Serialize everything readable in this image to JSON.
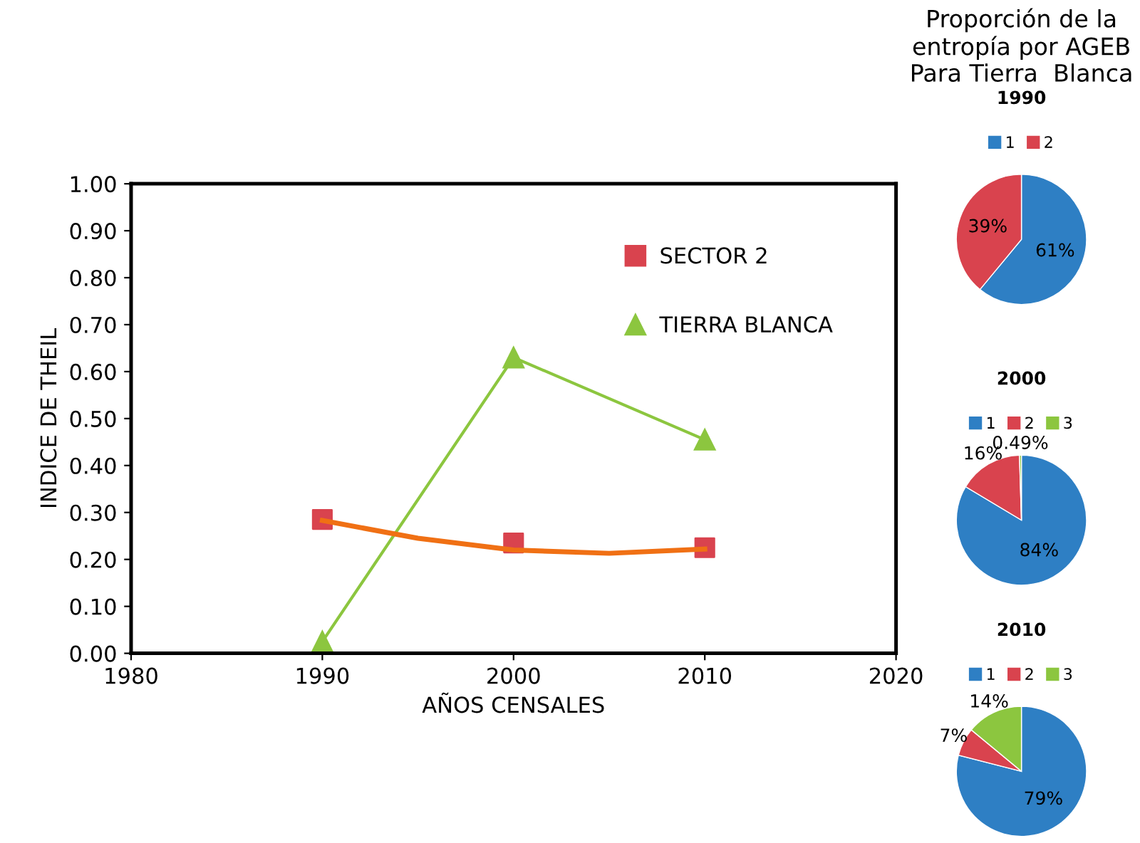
{
  "chart_data": [
    {
      "type": "line",
      "xlabel": "AÑOS CENSALES",
      "ylabel": "INDICE DE THEIL",
      "xlim": [
        1980,
        2020
      ],
      "xticks": [
        1980,
        1990,
        2000,
        2010,
        2020
      ],
      "ylim": [
        0,
        1
      ],
      "yticks": [
        {
          "value": 0,
          "label": "0.00"
        },
        {
          "value": 0.1,
          "label": "0.10"
        },
        {
          "value": 0.2,
          "label": "0.20"
        },
        {
          "value": 0.3,
          "label": "0.30"
        },
        {
          "value": 0.4,
          "label": "0.40"
        },
        {
          "value": 0.5,
          "label": "0.50"
        },
        {
          "value": 0.6,
          "label": "0.60"
        },
        {
          "value": 0.7,
          "label": "0.70"
        },
        {
          "value": 0.8,
          "label": "0.80"
        },
        {
          "value": 0.9,
          "label": "0.90"
        },
        {
          "value": 1,
          "label": "1.00"
        }
      ],
      "grid": false,
      "legend": "top right",
      "series": [
        {
          "name": "SECTOR 2",
          "type": "scatter",
          "marker": "square",
          "color": "#d9434e",
          "x": [
            1990,
            2000,
            2010
          ],
          "values": [
            0.285,
            0.235,
            0.225
          ]
        },
        {
          "name": "TIERRA BLANCA",
          "type": "line",
          "marker": "triangle",
          "color": "#8cc63f",
          "x": [
            1990,
            2000,
            2010
          ],
          "values": [
            0.025,
            0.63,
            0.455
          ]
        },
        {
          "type": "line",
          "marker": "none",
          "color": "#f07014",
          "x": [
            1990,
            1995,
            2000,
            2005,
            2010
          ],
          "values": [
            0.283,
            0.245,
            0.22,
            0.213,
            0.222
          ]
        }
      ]
    },
    {
      "type": "pie",
      "title": "1990",
      "annotations": [
        "Proporción de la\nentropía por AGEB\nPara Tierra  Blanca"
      ],
      "legend": "top",
      "categories": [
        "1",
        "2"
      ],
      "values": [
        61,
        39
      ],
      "colors": [
        "#2e7fc4",
        "#d9434e"
      ],
      "value_labels": [
        "61%",
        "39%"
      ]
    },
    {
      "type": "pie",
      "title": "2000",
      "legend": "top",
      "categories": [
        "1",
        "2",
        "3"
      ],
      "values": [
        84,
        16,
        0.49
      ],
      "colors": [
        "#2e7fc4",
        "#d9434e",
        "#8cc63f"
      ],
      "value_labels": [
        "84%",
        "16%",
        "0.49%"
      ]
    },
    {
      "type": "pie",
      "title": "2010",
      "legend": "top",
      "categories": [
        "1",
        "2",
        "3"
      ],
      "values": [
        79,
        7,
        14
      ],
      "colors": [
        "#2e7fc4",
        "#d9434e",
        "#8cc63f"
      ],
      "value_labels": [
        "79%",
        "7%",
        "14%"
      ]
    }
  ]
}
